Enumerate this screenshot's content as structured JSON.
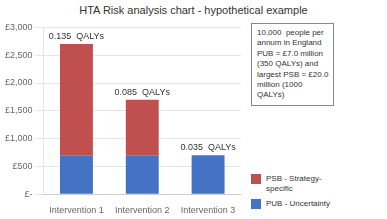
{
  "chart_data": {
    "type": "bar",
    "stacked": true,
    "title": "HTA Risk analysis chart - hypothetical example",
    "categories": [
      "Intervention 1",
      "Intervention 2",
      "Intervention 3"
    ],
    "series": [
      {
        "name": "PUB - Uncertainty",
        "color": "#4472C4",
        "values": [
          700,
          700,
          700
        ]
      },
      {
        "name": "PSB - Strategy-\nspecific",
        "color": "#C0504D",
        "values": [
          2000,
          1000,
          0
        ]
      }
    ],
    "ylim": [
      0,
      3000
    ],
    "yticks": [
      {
        "value": 0,
        "label": "£-"
      },
      {
        "value": 500,
        "label": "£500"
      },
      {
        "value": 1000,
        "label": "£1,000"
      },
      {
        "value": 1500,
        "label": "£1,500"
      },
      {
        "value": 2000,
        "label": "£2,000"
      },
      {
        "value": 2500,
        "label": "£2,500"
      },
      {
        "value": 3000,
        "label": "£3,000"
      }
    ],
    "grid": true,
    "legend": "right",
    "annotations": [
      {
        "text": "0.135  QALYs",
        "category": "Intervention 1"
      },
      {
        "text": "0.085  QALYs",
        "category": "Intervention 2"
      },
      {
        "text": "0.035  QALYs",
        "category": "Intervention 3"
      },
      {
        "text": "10,000  people per\nannum in England\nPUB = £7.0 million\n(350 QALYs) and\nlargest PSB = £20.0\nmillion (1000\nQALYs)"
      }
    ]
  }
}
